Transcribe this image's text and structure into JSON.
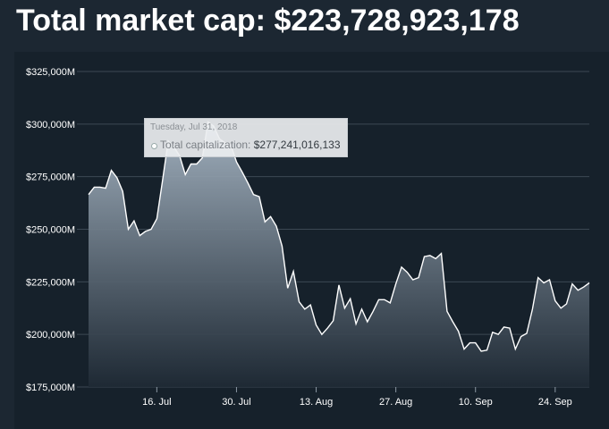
{
  "header": {
    "title": "Total market cap: $223,728,923,178"
  },
  "tooltip": {
    "date": "Tuesday, Jul 31, 2018",
    "label": "Total capitalization: ",
    "value": "$277,241,016,133"
  },
  "chart_data": {
    "type": "area",
    "title": "",
    "xlabel": "",
    "ylabel": "",
    "ylim": [
      175000,
      325000
    ],
    "yticks": [
      "$175,000M",
      "$200,000M",
      "$225,000M",
      "$250,000M",
      "$275,000M",
      "$300,000M",
      "$325,000M"
    ],
    "ytick_values": [
      175000,
      200000,
      225000,
      250000,
      275000,
      300000,
      325000
    ],
    "xticks": [
      "16. Jul",
      "30. Jul",
      "13. Aug",
      "27. Aug",
      "10. Sep",
      "24. Sep"
    ],
    "xtick_dates": [
      "2018-07-16",
      "2018-07-30",
      "2018-08-13",
      "2018-08-27",
      "2018-09-10",
      "2018-09-24"
    ],
    "grid": true,
    "colors": {
      "line": "#ffffff",
      "fill_top": "#a9b8c6",
      "fill_bottom": "#1f2a35",
      "grid": "#3c4853"
    },
    "series": [
      {
        "x": [
          "2018-07-04",
          "2018-07-05",
          "2018-07-06",
          "2018-07-07",
          "2018-07-08",
          "2018-07-09",
          "2018-07-10",
          "2018-07-11",
          "2018-07-12",
          "2018-07-13",
          "2018-07-14",
          "2018-07-15",
          "2018-07-16",
          "2018-07-17",
          "2018-07-18",
          "2018-07-19",
          "2018-07-20",
          "2018-07-21",
          "2018-07-22",
          "2018-07-23",
          "2018-07-24",
          "2018-07-25",
          "2018-07-26",
          "2018-07-27",
          "2018-07-28",
          "2018-07-29",
          "2018-07-30",
          "2018-07-31",
          "2018-08-01",
          "2018-08-02",
          "2018-08-03",
          "2018-08-04",
          "2018-08-05",
          "2018-08-06",
          "2018-08-07",
          "2018-08-08",
          "2018-08-09",
          "2018-08-10",
          "2018-08-11",
          "2018-08-12",
          "2018-08-13",
          "2018-08-14",
          "2018-08-15",
          "2018-08-16",
          "2018-08-17",
          "2018-08-18",
          "2018-08-19",
          "2018-08-20",
          "2018-08-21",
          "2018-08-22",
          "2018-08-23",
          "2018-08-24",
          "2018-08-25",
          "2018-08-26",
          "2018-08-27",
          "2018-08-28",
          "2018-08-29",
          "2018-08-30",
          "2018-08-31",
          "2018-09-01",
          "2018-09-02",
          "2018-09-03",
          "2018-09-04",
          "2018-09-05",
          "2018-09-06",
          "2018-09-07",
          "2018-09-08",
          "2018-09-09",
          "2018-09-10",
          "2018-09-11",
          "2018-09-12",
          "2018-09-13",
          "2018-09-14",
          "2018-09-15",
          "2018-09-16",
          "2018-09-17",
          "2018-09-18",
          "2018-09-19",
          "2018-09-20",
          "2018-09-21",
          "2018-09-22",
          "2018-09-23",
          "2018-09-24",
          "2018-09-25",
          "2018-09-26",
          "2018-09-27",
          "2018-09-28",
          "2018-09-29",
          "2018-09-30"
        ],
        "values": [
          266500,
          270000,
          270000,
          269500,
          278000,
          274500,
          268000,
          250000,
          254000,
          247000,
          249000,
          250000,
          255000,
          273000,
          292000,
          289000,
          285000,
          276000,
          281000,
          281000,
          284000,
          301000,
          299000,
          293000,
          291000,
          290000,
          282000,
          277241,
          272000,
          266500,
          265500,
          253500,
          256000,
          251500,
          242000,
          222000,
          230000,
          215500,
          212000,
          214000,
          204500,
          200000,
          203000,
          206500,
          223500,
          212500,
          217000,
          205000,
          212000,
          206000,
          211000,
          216500,
          216500,
          215000,
          224000,
          232000,
          229500,
          226000,
          227000,
          237000,
          237500,
          236000,
          238500,
          211000,
          206000,
          201500,
          193000,
          196000,
          196000,
          192000,
          192500,
          201000,
          200000,
          203500,
          203000,
          193000,
          199000,
          200500,
          212000,
          227000,
          224500,
          226000,
          216000,
          212500,
          214500,
          224000,
          221000,
          222500,
          224500
        ]
      }
    ]
  }
}
